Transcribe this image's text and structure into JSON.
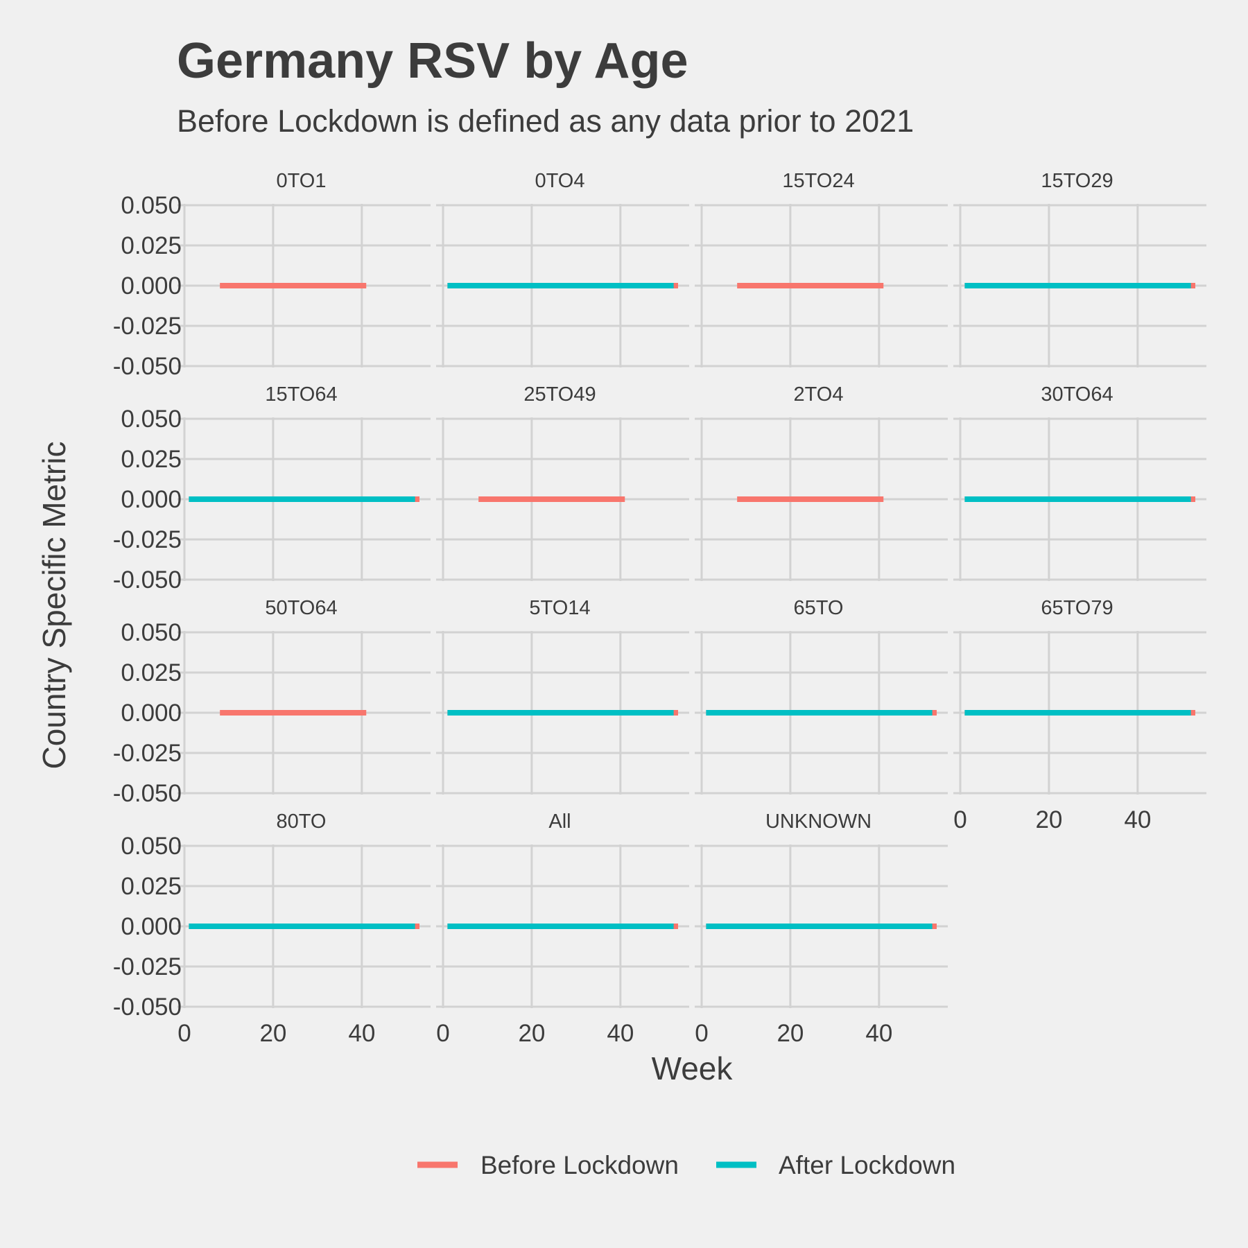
{
  "chart_data": {
    "type": "line",
    "title": "Germany RSV by Age",
    "subtitle": "Before Lockdown is defined as any data prior to 2021",
    "xlabel": "Week",
    "ylabel": "Country Specific Metric",
    "xlim": [
      0,
      53
    ],
    "ylim": [
      -0.05,
      0.05
    ],
    "x_ticks": [
      0,
      20,
      40
    ],
    "x_tick_labels": [
      "0",
      "20",
      "40"
    ],
    "y_ticks": [
      0.05,
      0.025,
      0,
      -0.025,
      -0.05
    ],
    "y_tick_labels": [
      "0.050",
      "0.025",
      "0.000",
      "-0.025",
      "-0.050"
    ],
    "grid": true,
    "legend_position": "bottom",
    "legend": [
      {
        "name": "Before Lockdown",
        "color": "#f8766d"
      },
      {
        "name": "After Lockdown",
        "color": "#00bfc4"
      }
    ],
    "panels": [
      {
        "label": "0TO1",
        "before": [
          [
            8,
            0
          ],
          [
            41,
            0
          ]
        ],
        "after": null
      },
      {
        "label": "0TO4",
        "before": [
          [
            1,
            0
          ],
          [
            53,
            0
          ]
        ],
        "after": [
          [
            1,
            0
          ],
          [
            52,
            0
          ]
        ]
      },
      {
        "label": "15TO24",
        "before": [
          [
            8,
            0
          ],
          [
            41,
            0
          ]
        ],
        "after": null
      },
      {
        "label": "15TO29",
        "before": [
          [
            1,
            0
          ],
          [
            53,
            0
          ]
        ],
        "after": [
          [
            1,
            0
          ],
          [
            52,
            0
          ]
        ]
      },
      {
        "label": "15TO64",
        "before": [
          [
            1,
            0
          ],
          [
            53,
            0
          ]
        ],
        "after": [
          [
            1,
            0
          ],
          [
            52,
            0
          ]
        ]
      },
      {
        "label": "25TO49",
        "before": [
          [
            8,
            0
          ],
          [
            41,
            0
          ]
        ],
        "after": null
      },
      {
        "label": "2TO4",
        "before": [
          [
            8,
            0
          ],
          [
            41,
            0
          ]
        ],
        "after": null
      },
      {
        "label": "30TO64",
        "before": [
          [
            1,
            0
          ],
          [
            53,
            0
          ]
        ],
        "after": [
          [
            1,
            0
          ],
          [
            52,
            0
          ]
        ]
      },
      {
        "label": "50TO64",
        "before": [
          [
            8,
            0
          ],
          [
            41,
            0
          ]
        ],
        "after": null
      },
      {
        "label": "5TO14",
        "before": [
          [
            1,
            0
          ],
          [
            53,
            0
          ]
        ],
        "after": [
          [
            1,
            0
          ],
          [
            52,
            0
          ]
        ]
      },
      {
        "label": "65TO",
        "before": [
          [
            1,
            0
          ],
          [
            53,
            0
          ]
        ],
        "after": [
          [
            1,
            0
          ],
          [
            52,
            0
          ]
        ]
      },
      {
        "label": "65TO79",
        "before": [
          [
            1,
            0
          ],
          [
            53,
            0
          ]
        ],
        "after": [
          [
            1,
            0
          ],
          [
            52,
            0
          ]
        ]
      },
      {
        "label": "80TO",
        "before": [
          [
            1,
            0
          ],
          [
            53,
            0
          ]
        ],
        "after": [
          [
            1,
            0
          ],
          [
            52,
            0
          ]
        ]
      },
      {
        "label": "All",
        "before": [
          [
            1,
            0
          ],
          [
            53,
            0
          ]
        ],
        "after": [
          [
            1,
            0
          ],
          [
            52,
            0
          ]
        ]
      },
      {
        "label": "UNKNOWN",
        "before": [
          [
            1,
            0
          ],
          [
            53,
            0
          ]
        ],
        "after": [
          [
            1,
            0
          ],
          [
            52,
            0
          ]
        ]
      }
    ]
  }
}
